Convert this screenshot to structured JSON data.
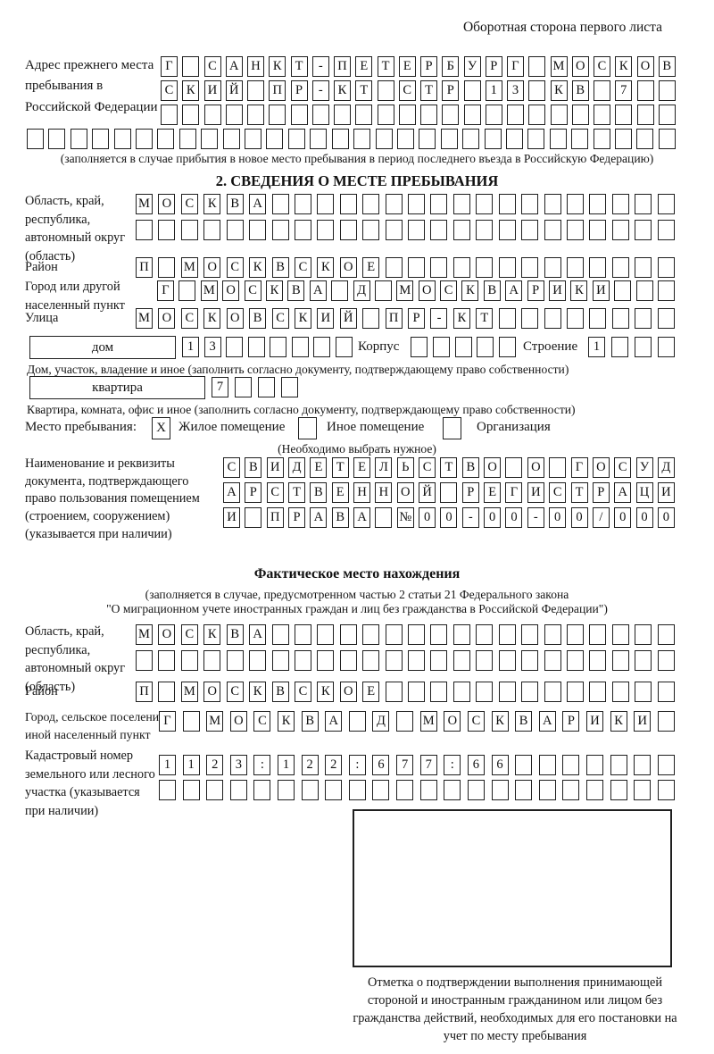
{
  "page": {
    "header_note": "Оборотная сторона первого листа"
  },
  "prev_address": {
    "label": "Адрес прежнего места пребывания в Российской Федерации",
    "rows": [
      {
        "text": "Г САНКТ-ПЕТЕРБУРГ МОСКОВ",
        "len": 24
      },
      {
        "text": "СКИЙ ПР-КТ СТР 13 КВ 7",
        "len": 24
      },
      {
        "text": "",
        "len": 24
      },
      {
        "text": "",
        "len": 30
      }
    ],
    "note": "(заполняется в случае прибытия в новое место пребывания в период последнего въезда в Российскую Федерацию)"
  },
  "section2": {
    "title": "2. СВЕДЕНИЯ О МЕСТЕ ПРЕБЫВАНИЯ",
    "region": {
      "label": "Область, край, республика, автономный округ (область)",
      "rows": [
        {
          "text": "МОСКВА",
          "len": 24
        },
        {
          "text": "",
          "len": 24
        }
      ]
    },
    "district": {
      "label": "Район",
      "row": {
        "text": "П МОСКВСКОЕ",
        "len": 24
      }
    },
    "city": {
      "label": "Город или другой населенный пункт",
      "row": {
        "text": "Г МОСКВА Д МОСКВАРИКИ",
        "len": 24
      }
    },
    "street": {
      "label": "Улица",
      "row": {
        "text": "МОСКОВСКИЙ ПР-КТ",
        "len": 24
      }
    },
    "house": {
      "box_label": "дом",
      "cells": {
        "text": "13",
        "len": 8
      },
      "korpus_label": "Корпус",
      "korpus_cells": {
        "text": "",
        "len": 5
      },
      "stroenie_label": "Строение",
      "stroenie_cells": {
        "text": "1",
        "len": 4
      },
      "note": "Дом, участок, владение и иное (заполнить согласно документу, подтверждающему право собственности)"
    },
    "apartment": {
      "box_label": "квартира",
      "cells": {
        "text": "7",
        "len": 4
      },
      "note": "Квартира, комната, офис и иное (заполнить согласно документу, подтверждающему право собственности)"
    },
    "stay_type": {
      "label": "Место пребывания:",
      "options": [
        {
          "label": "Жилое помещение",
          "checked": "X"
        },
        {
          "label": "Иное помещение",
          "checked": ""
        },
        {
          "label": "Организация",
          "checked": ""
        }
      ],
      "note": "(Необходимо выбрать нужное)"
    },
    "document": {
      "label": "Наименование и реквизиты документа, подтверждающего право пользования помещением (строением, сооружением) (указывается при наличии)",
      "rows": [
        {
          "text": "СВИДЕТЕЛЬСТВО О ГОСУД",
          "len": 21
        },
        {
          "text": "АРСТВЕННОЙ РЕГИСТРАЦИ",
          "len": 21
        },
        {
          "text": "И ПРАВА №00-00-00/000",
          "len": 21
        }
      ]
    }
  },
  "actual_location": {
    "title": "Фактическое место нахождения",
    "note_line1": "(заполняется в случае, предусмотренном частью 2 статьи 21 Федерального закона",
    "note_line2": "\"О миграционном учете иностранных граждан и лиц без гражданства в Российской Федерации\")",
    "region": {
      "label": "Область, край, республика, автономный округ (область)",
      "rows": [
        {
          "text": "МОСКВА",
          "len": 24
        },
        {
          "text": "",
          "len": 24
        }
      ]
    },
    "district": {
      "label": "Район",
      "row": {
        "text": "П МОСКВСКОЕ",
        "len": 24
      }
    },
    "city": {
      "label": "Город, сельское поселение, иной населенный пункт",
      "row": {
        "text": "Г МОСКВА Д МОСКВАРИКИ",
        "len": 22
      }
    },
    "cadastre": {
      "label": "Кадастровый номер земельного или лесного участка (указывается при наличии)",
      "rows": [
        {
          "text": "1123:122:677:66",
          "len": 22
        },
        {
          "text": "",
          "len": 22
        }
      ]
    },
    "stamp_note": "Отметка о подтверждении выполнения принимающей стороной и иностранным гражданином или лицом без гражданства действий, необходимых для его постановки на учет по месту пребывания"
  }
}
